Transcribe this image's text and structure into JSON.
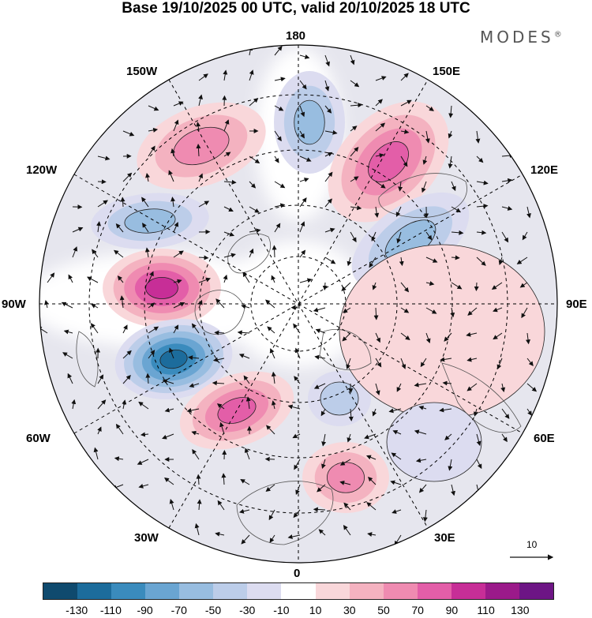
{
  "title": "Base 19/10/2025 00 UTC, valid 20/10/2025 18 UTC",
  "brand": "MODES",
  "brand_mark": "®",
  "longitude_labels": {
    "top": "180",
    "bottom": "0",
    "left": "90W",
    "right": "90E",
    "upper_left": "150W",
    "upper_right": "150E",
    "mid_left_upper": "120W",
    "mid_right_upper": "120E",
    "lower_left": "60W",
    "lower_right": "60E",
    "bottom_left": "30W",
    "bottom_right": "30E"
  },
  "reference_vector": "10",
  "colorbar": {
    "colors": [
      "#0f4a6e",
      "#1c6c9c",
      "#3a8bbd",
      "#6aa5d2",
      "#98bde0",
      "#bccde9",
      "#dcdcf0",
      "#ffffff",
      "#f9d7da",
      "#f4b2c0",
      "#ef8bb1",
      "#e35ea8",
      "#c72e97",
      "#9b1a8a",
      "#6d1585"
    ],
    "ticks": [
      "-130",
      "-110",
      "-90",
      "-70",
      "-50",
      "-30",
      "-10",
      "10",
      "30",
      "50",
      "70",
      "90",
      "110",
      "130"
    ]
  },
  "anomaly_centers": [
    {
      "name": "pos-gulf-alaska",
      "value": 70
    },
    {
      "name": "neg-north-pacific",
      "value": -70
    },
    {
      "name": "pos-east-siberia",
      "value": 80
    },
    {
      "name": "neg-central-siberia",
      "value": -70
    },
    {
      "name": "neg-east-pacific",
      "value": -70
    },
    {
      "name": "pos-north-canada",
      "value": 100
    },
    {
      "name": "neg-labrador",
      "value": -120
    },
    {
      "name": "pos-north-atlantic",
      "value": 90
    },
    {
      "name": "neg-north-sea",
      "value": -50
    },
    {
      "name": "pos-europe",
      "value": 60
    },
    {
      "name": "pos-ural",
      "value": 30
    },
    {
      "name": "neg-mid-atlantic",
      "value": -30
    }
  ]
}
